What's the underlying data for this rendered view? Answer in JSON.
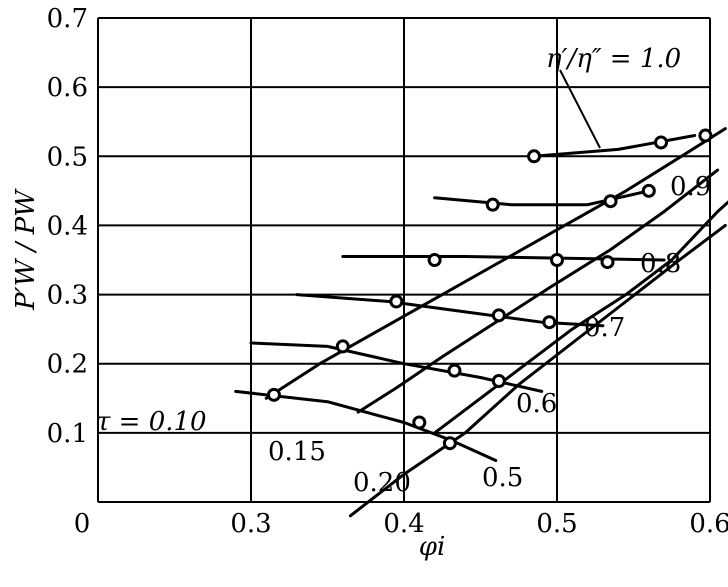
{
  "chart_data": {
    "type": "line",
    "title": "",
    "xlabel": "φi",
    "ylabel": "P′W / PW",
    "xlim": [
      0.2,
      0.6
    ],
    "ylim": [
      0,
      0.7
    ],
    "x_ticks": [
      "0",
      "0.3",
      "0.4",
      "0.5",
      "0.6"
    ],
    "y_ticks": [
      "0",
      "0.1",
      "0.2",
      "0.3",
      "0.4",
      "0.5",
      "0.6",
      "0.7"
    ],
    "grid": true,
    "tau_series": [
      {
        "name": "τ = 0.10",
        "points": [
          [
            0.31,
            0.15
          ],
          [
            0.345,
            0.2
          ],
          [
            0.385,
            0.25
          ],
          [
            0.425,
            0.3
          ],
          [
            0.465,
            0.35
          ],
          [
            0.505,
            0.4
          ],
          [
            0.545,
            0.45
          ],
          [
            0.585,
            0.505
          ],
          [
            0.61,
            0.54
          ]
        ]
      },
      {
        "name": "0.15",
        "points": [
          [
            0.37,
            0.13
          ],
          [
            0.395,
            0.165
          ],
          [
            0.425,
            0.21
          ],
          [
            0.46,
            0.26
          ],
          [
            0.495,
            0.31
          ],
          [
            0.535,
            0.365
          ],
          [
            0.57,
            0.42
          ],
          [
            0.605,
            0.48
          ]
        ]
      },
      {
        "name": "0.20",
        "points": [
          [
            0.42,
            0.1
          ],
          [
            0.45,
            0.15
          ],
          [
            0.48,
            0.2
          ],
          [
            0.51,
            0.25
          ],
          [
            0.545,
            0.3
          ],
          [
            0.575,
            0.35
          ],
          [
            0.605,
            0.42
          ],
          [
            0.62,
            0.45
          ]
        ]
      },
      {
        "name": "0.20",
        "points": [
          [
            0.365,
            -0.02
          ],
          [
            0.4,
            0.04
          ],
          [
            0.44,
            0.1
          ],
          [
            0.475,
            0.17
          ],
          [
            0.51,
            0.23
          ],
          [
            0.545,
            0.29
          ],
          [
            0.58,
            0.35
          ],
          [
            0.61,
            0.4
          ]
        ]
      }
    ],
    "eta_series": [
      {
        "name": "η′/η″ = 1.0",
        "points": [
          [
            0.485,
            0.5
          ],
          [
            0.54,
            0.51
          ],
          [
            0.59,
            0.53
          ]
        ]
      },
      {
        "name": "0.9",
        "points": [
          [
            0.42,
            0.44
          ],
          [
            0.47,
            0.43
          ],
          [
            0.52,
            0.43
          ],
          [
            0.56,
            0.45
          ]
        ]
      },
      {
        "name": "0.8",
        "points": [
          [
            0.36,
            0.355
          ],
          [
            0.44,
            0.355
          ],
          [
            0.52,
            0.352
          ],
          [
            0.57,
            0.35
          ]
        ]
      },
      {
        "name": "0.7",
        "points": [
          [
            0.33,
            0.3
          ],
          [
            0.39,
            0.29
          ],
          [
            0.44,
            0.275
          ],
          [
            0.49,
            0.26
          ],
          [
            0.53,
            0.255
          ]
        ]
      },
      {
        "name": "0.6",
        "points": [
          [
            0.3,
            0.23
          ],
          [
            0.35,
            0.225
          ],
          [
            0.4,
            0.2
          ],
          [
            0.45,
            0.18
          ],
          [
            0.49,
            0.16
          ]
        ]
      },
      {
        "name": "0.5",
        "points": [
          [
            0.29,
            0.16
          ],
          [
            0.35,
            0.145
          ],
          [
            0.4,
            0.115
          ],
          [
            0.43,
            0.09
          ],
          [
            0.46,
            0.06
          ]
        ]
      }
    ],
    "markers": [
      [
        0.315,
        0.155
      ],
      [
        0.36,
        0.225
      ],
      [
        0.395,
        0.29
      ],
      [
        0.42,
        0.35
      ],
      [
        0.458,
        0.43
      ],
      [
        0.485,
        0.5
      ],
      [
        0.41,
        0.115
      ],
      [
        0.433,
        0.19
      ],
      [
        0.462,
        0.27
      ],
      [
        0.5,
        0.35
      ],
      [
        0.535,
        0.435
      ],
      [
        0.568,
        0.52
      ],
      [
        0.43,
        0.085
      ],
      [
        0.462,
        0.175
      ],
      [
        0.495,
        0.26
      ],
      [
        0.533,
        0.347
      ],
      [
        0.56,
        0.45
      ],
      [
        0.597,
        0.53
      ]
    ],
    "annotations": [
      "η′/η″ = 1.0",
      "0.9",
      "0.8",
      "0.7",
      "0.6",
      "0.5",
      "τ = 0.10",
      "0.15",
      "0.20"
    ]
  }
}
